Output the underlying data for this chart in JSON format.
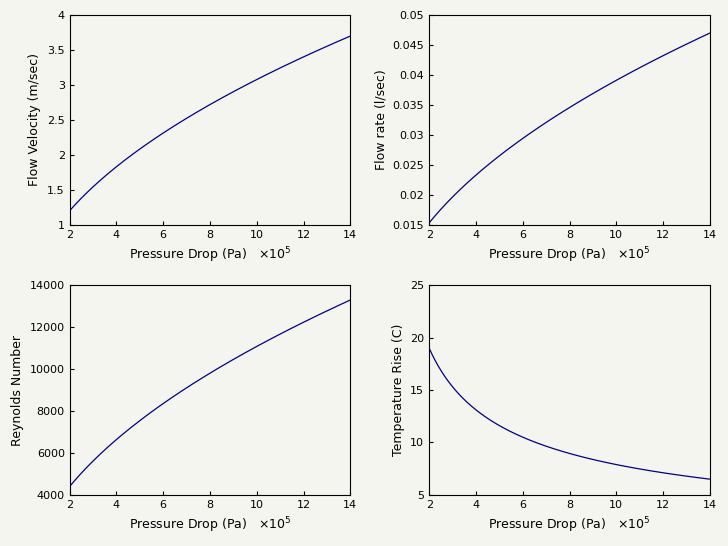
{
  "x_range": [
    200000.0,
    1400000.0
  ],
  "n_points": 1000,
  "subplot1": {
    "ylabel": "Flow Velocity (m/sec)",
    "xlabel": "Pressure Drop (Pa)",
    "ylim": [
      1,
      4
    ],
    "yticks": [
      1,
      1.5,
      2,
      2.5,
      3,
      3.5,
      4
    ],
    "xticks": [
      2,
      4,
      6,
      8,
      10,
      12,
      14
    ],
    "v_start": 1.2,
    "v_end": 3.7
  },
  "subplot2": {
    "ylabel": "Flow rate (l/sec)",
    "xlabel": "Pressure Drop (Pa)",
    "ylim": [
      0.015,
      0.05
    ],
    "yticks": [
      0.015,
      0.02,
      0.025,
      0.03,
      0.035,
      0.04,
      0.045,
      0.05
    ],
    "xticks": [
      2,
      4,
      6,
      8,
      10,
      12,
      14
    ],
    "v_start": 0.0153,
    "v_end": 0.047
  },
  "subplot3": {
    "ylabel": "Reynolds Number",
    "xlabel": "Pressure Drop (Pa)",
    "ylim": [
      4000,
      14000
    ],
    "yticks": [
      4000,
      6000,
      8000,
      10000,
      12000,
      14000
    ],
    "xticks": [
      2,
      4,
      6,
      8,
      10,
      12,
      14
    ],
    "v_start": 4400,
    "v_end": 13300
  },
  "subplot4": {
    "ylabel": "Temperature Rise (C)",
    "xlabel": "Pressure Drop (Pa)",
    "ylim": [
      5,
      25
    ],
    "yticks": [
      5,
      10,
      15,
      20,
      25
    ],
    "xticks": [
      2,
      4,
      6,
      8,
      10,
      12,
      14
    ],
    "v_start": 19.0,
    "v_end": 6.5
  },
  "line_color": "#00008B",
  "background_color": "#f5f5f0",
  "font_size_label": 9,
  "font_size_tick": 8,
  "line_width": 0.9
}
